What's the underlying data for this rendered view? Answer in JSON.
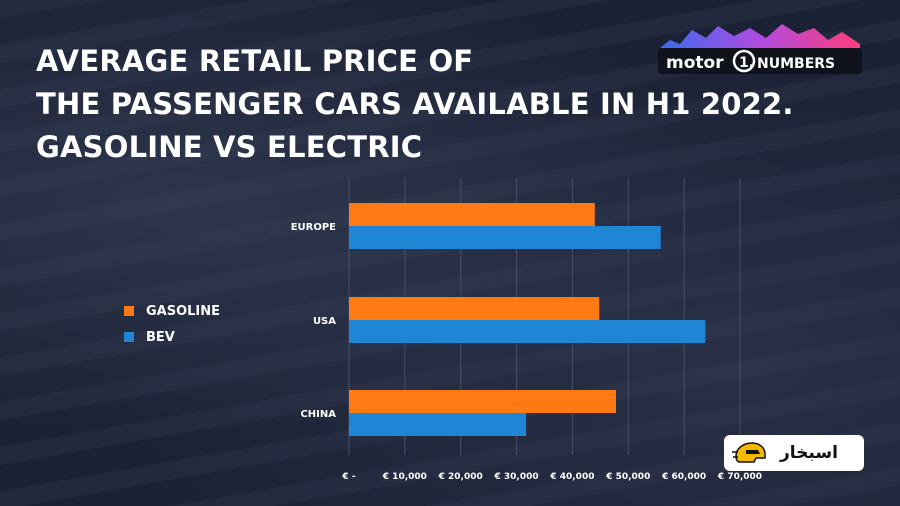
{
  "title_lines": [
    "AVERAGE RETAIL PRICE OF",
    "THE PASSENGER CARS AVAILABLE IN H1 2022.",
    "GASOLINE VS ELECTRIC"
  ],
  "logo": {
    "word1": "motor",
    "numeral": "1.",
    "word2": "NUMBERS"
  },
  "watermark": {
    "text": "اسبخار",
    "icon": "car-helmet-icon"
  },
  "colors": {
    "gasoline": "#ff7a12",
    "bev": "#1f86d6",
    "background": "#1d2438",
    "grid": "#46506a"
  },
  "chart_data": {
    "type": "bar",
    "orientation": "horizontal",
    "categories": [
      "EUROPE",
      "USA",
      "CHINA"
    ],
    "series": [
      {
        "name": "GASOLINE",
        "values": [
          44000,
          44800,
          47800
        ]
      },
      {
        "name": "BEV",
        "values": [
          55800,
          63800,
          31700
        ]
      }
    ],
    "xlim": [
      0,
      70000
    ],
    "xticks": [
      0,
      10000,
      20000,
      30000,
      40000,
      50000,
      60000,
      70000
    ],
    "xtick_labels": [
      "€ -",
      "€ 10,000",
      "€ 20,000",
      "€ 30,000",
      "€ 40,000",
      "€ 50,000",
      "€ 60,000",
      "€ 70,000"
    ],
    "grid": "vertical",
    "legend_position": "left"
  }
}
